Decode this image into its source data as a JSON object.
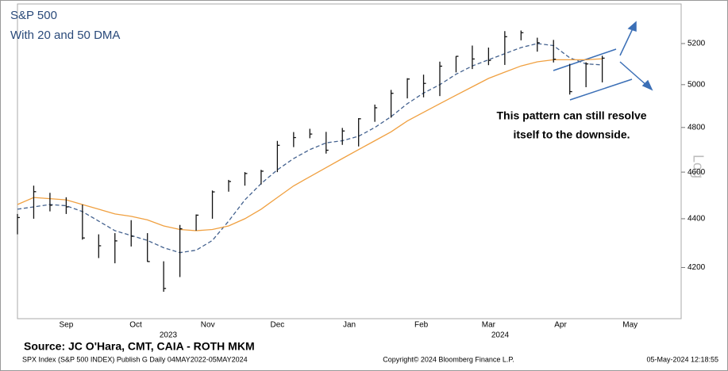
{
  "chart_data": {
    "type": "ohlc",
    "title": "S&P 500",
    "subtitle": "With 20 and 50 DMA",
    "axis_label": "Log",
    "annotation": [
      "This pattern can still resolve",
      "itself to the downside."
    ],
    "source": "Source: JC O'Hara, CMT, CAIA - ROTH MKM",
    "footer_left": "SPX Index (S&P 500 INDEX) Publish G  Daily 04MAY2022-05MAY2024",
    "footer_center": "Copyright© 2024 Bloomberg Finance L.P.",
    "footer_right": "05-May-2024 12:18:55",
    "log_scale": true,
    "color": "#111111",
    "x": [
      "2023-08-25",
      "2023-09-01",
      "2023-09-08",
      "2023-09-15",
      "2023-09-22",
      "2023-09-29",
      "2023-10-06",
      "2023-10-13",
      "2023-10-20",
      "2023-10-27",
      "2023-11-03",
      "2023-11-10",
      "2023-11-17",
      "2023-11-24",
      "2023-12-01",
      "2023-12-08",
      "2023-12-15",
      "2023-12-22",
      "2023-12-29",
      "2024-01-05",
      "2024-01-12",
      "2024-01-19",
      "2024-01-26",
      "2024-02-02",
      "2024-02-09",
      "2024-02-16",
      "2024-02-23",
      "2024-03-01",
      "2024-03-08",
      "2024-03-15",
      "2024-03-22",
      "2024-03-29",
      "2024-04-05",
      "2024-04-12",
      "2024-04-19",
      "2024-04-26",
      "2024-05-03"
    ],
    "high": [
      4420,
      4541,
      4510,
      4491,
      4460,
      4335,
      4340,
      4394,
      4340,
      4225,
      4374,
      4418,
      4520,
      4566,
      4600,
      4610,
      4739,
      4779,
      4794,
      4780,
      4798,
      4843,
      4906,
      4975,
      5031,
      5048,
      5111,
      5138,
      5190,
      5180,
      5262,
      5265,
      5229,
      5218,
      5100,
      5108,
      5140
    ],
    "low": [
      4335,
      4400,
      4431,
      4420,
      4313,
      4238,
      4217,
      4285,
      4223,
      4104,
      4162,
      4350,
      4400,
      4515,
      4541,
      4546,
      4600,
      4711,
      4751,
      4682,
      4721,
      4714,
      4826,
      4845,
      4935,
      4940,
      4946,
      5059,
      5075,
      5094,
      5095,
      5216,
      5160,
      5107,
      4953,
      4988,
      5011
    ],
    "close": [
      4405,
      4515,
      4457,
      4450,
      4320,
      4288,
      4308,
      4327,
      4224,
      4117,
      4358,
      4415,
      4514,
      4559,
      4594,
      4604,
      4719,
      4754,
      4770,
      4697,
      4784,
      4840,
      4891,
      4959,
      5027,
      5006,
      5089,
      5137,
      5124,
      5117,
      5234,
      5254,
      5204,
      5123,
      4967,
      5100,
      5128
    ],
    "series": [
      {
        "color": "#44628f",
        "dashed": true,
        "values": [
          4440,
          4450,
          4460,
          4455,
          4430,
          4390,
          4350,
          4330,
          4310,
          4280,
          4260,
          4270,
          4310,
          4390,
          4480,
          4550,
          4610,
          4660,
          4700,
          4730,
          4740,
          4760,
          4800,
          4850,
          4910,
          4960,
          5000,
          5050,
          5090,
          5120,
          5150,
          5180,
          5200,
          5190,
          5130,
          5100,
          5095
        ]
      },
      {
        "color": "#f0a040",
        "dashed": false,
        "values": [
          4460,
          4490,
          4485,
          4480,
          4460,
          4440,
          4420,
          4410,
          4395,
          4370,
          4355,
          4350,
          4355,
          4370,
          4400,
          4440,
          4490,
          4540,
          4580,
          4620,
          4660,
          4700,
          4740,
          4780,
          4830,
          4870,
          4910,
          4950,
          4990,
          5030,
          5060,
          5090,
          5110,
          5120,
          5120,
          5120,
          5125
        ]
      }
    ],
    "xlim": [
      "2023-08-25",
      "2024-06-06"
    ],
    "xticks": [
      {
        "value": "2023-09-15",
        "label": "Sep"
      },
      {
        "value": "2023-10-15",
        "label": "Oct"
      },
      {
        "value": "2023-11-15",
        "label": "Nov"
      },
      {
        "value": "2023-12-15",
        "label": "Dec"
      },
      {
        "value": "2024-01-15",
        "label": "Jan"
      },
      {
        "value": "2024-02-15",
        "label": "Feb"
      },
      {
        "value": "2024-03-15",
        "label": "Mar"
      },
      {
        "value": "2024-04-15",
        "label": "Apr"
      },
      {
        "value": "2024-05-15",
        "label": "May"
      }
    ],
    "xticks_year": [
      {
        "value": "2023-10-29",
        "label": "2023"
      },
      {
        "value": "2024-03-20",
        "label": "2024"
      }
    ],
    "ylim": [
      4000,
      5400
    ],
    "yticks": [
      4200,
      4400,
      4600,
      4800,
      5000,
      5200
    ]
  }
}
